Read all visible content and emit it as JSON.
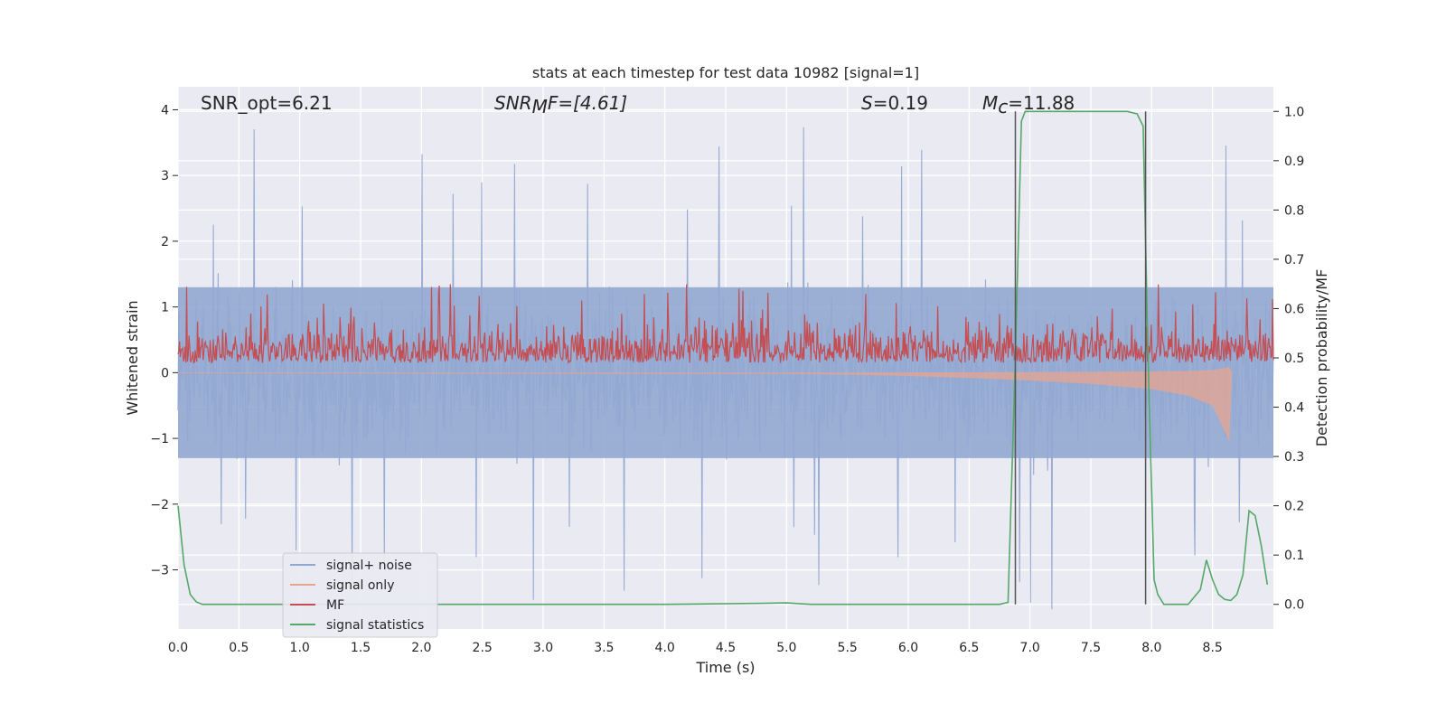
{
  "chart_data": {
    "type": "line",
    "title": "stats at each timestep for test data 10982 [signal=1]",
    "xlabel": "Time (s)",
    "ylabel": "Whitened strain",
    "ylabel_right": "Detection probability/MF",
    "xlim": [
      0.0,
      9.0
    ],
    "ylim": [
      -3.9,
      4.35
    ],
    "ylim_right": [
      -0.05,
      1.05
    ],
    "grid": true,
    "legend_position": "lower-left",
    "x_ticks": [
      "0.0",
      "0.5",
      "1.0",
      "1.5",
      "2.0",
      "2.5",
      "3.0",
      "3.5",
      "4.0",
      "4.5",
      "5.0",
      "5.5",
      "6.0",
      "6.5",
      "7.0",
      "7.5",
      "8.0",
      "8.5"
    ],
    "y_ticks": [
      "−3",
      "−2",
      "−1",
      "0",
      "1",
      "2",
      "3",
      "4"
    ],
    "y_ticks_right": [
      "0.0",
      "0.1",
      "0.2",
      "0.3",
      "0.4",
      "0.5",
      "0.6",
      "0.7",
      "0.8",
      "0.9",
      "1.0"
    ],
    "annotations": {
      "snr_opt": "SNR_opt=6.21",
      "snr_mf_sym": "SNR",
      "snr_mf_sub": "M",
      "snr_mf_rest": "F=[4.61]",
      "s_sym": "S",
      "s_rest": "=0.19",
      "mc_sym": "M",
      "mc_sub": "c",
      "mc_rest": "=11.88"
    },
    "vlines_x": [
      6.88,
      7.95
    ],
    "series": [
      {
        "name": "signal+ noise",
        "color": "#92a8d1",
        "axis": "left",
        "description_band": {
          "typical_low": -1.3,
          "typical_high": 1.3,
          "peak_high": 4.0,
          "peak_low": -3.6
        }
      },
      {
        "name": "signal only",
        "color": "#e8a48f",
        "axis": "left",
        "x": [
          0.0,
          5.0,
          5.5,
          6.0,
          6.5,
          7.0,
          7.5,
          8.0,
          8.3,
          8.5,
          8.64,
          8.66
        ],
        "envelope": [
          0.01,
          0.02,
          0.03,
          0.05,
          0.08,
          0.12,
          0.17,
          0.25,
          0.35,
          0.5,
          1.05,
          0.0
        ]
      },
      {
        "name": "MF",
        "color": "#c44e52",
        "axis": "right",
        "baseline": 0.5,
        "typical_high": 0.58,
        "peak_high": 0.65
      },
      {
        "name": "signal statistics",
        "color": "#55a868",
        "axis": "right",
        "x": [
          0.0,
          0.05,
          0.1,
          0.15,
          0.2,
          0.5,
          1.0,
          2.0,
          3.0,
          4.0,
          4.8,
          5.0,
          5.2,
          6.0,
          6.5,
          6.75,
          6.82,
          6.88,
          6.93,
          6.96,
          7.0,
          7.5,
          7.8,
          7.88,
          7.93,
          7.97,
          8.02,
          8.05,
          8.1,
          8.2,
          8.3,
          8.4,
          8.45,
          8.5,
          8.55,
          8.6,
          8.65,
          8.7,
          8.75,
          8.8,
          8.85,
          8.9,
          8.95
        ],
        "values": [
          0.2,
          0.08,
          0.02,
          0.005,
          0.0,
          0.0,
          0.0,
          0.0,
          0.0,
          0.0,
          0.002,
          0.003,
          0.0,
          0.0,
          0.0,
          0.0,
          0.004,
          0.5,
          0.98,
          1.0,
          1.0,
          1.0,
          1.0,
          0.995,
          0.97,
          0.5,
          0.05,
          0.02,
          0.0,
          0.0,
          0.0,
          0.03,
          0.09,
          0.05,
          0.02,
          0.01,
          0.008,
          0.02,
          0.06,
          0.19,
          0.18,
          0.12,
          0.04
        ]
      }
    ]
  }
}
